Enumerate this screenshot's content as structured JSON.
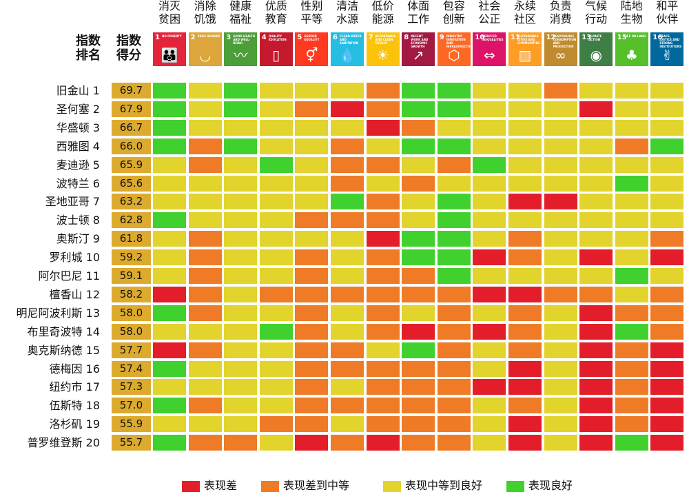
{
  "chart_data": {
    "type": "heatmap",
    "header": {
      "rank_label": "指数\n排名",
      "score_label": "指数\n得分"
    },
    "goals": [
      {
        "num": "1",
        "name": "消灭\n贫困",
        "caption": "NO POVERTY",
        "color": "#e5243b",
        "icon": "people-icon"
      },
      {
        "num": "2",
        "name": "消除\n饥饿",
        "caption": "ZERO HUNGER",
        "color": "#dda63a",
        "icon": "bowl-icon"
      },
      {
        "num": "3",
        "name": "健康\n福祉",
        "caption": "GOOD HEALTH AND WELL-BEING",
        "color": "#4c9f38",
        "icon": "heartbeat-icon"
      },
      {
        "num": "4",
        "name": "优质\n教育",
        "caption": "QUALITY EDUCATION",
        "color": "#c5192d",
        "icon": "book-icon"
      },
      {
        "num": "5",
        "name": "性别\n平等",
        "caption": "GENDER EQUALITY",
        "color": "#ff3a21",
        "icon": "gender-icon"
      },
      {
        "num": "6",
        "name": "清洁\n水源",
        "caption": "CLEAN WATER AND SANITATION",
        "color": "#26bde2",
        "icon": "water-drop-icon"
      },
      {
        "num": "7",
        "name": "低价\n能源",
        "caption": "AFFORDABLE AND CLEAN ENERGY",
        "color": "#fcc30b",
        "icon": "sun-icon"
      },
      {
        "num": "8",
        "name": "体面\n工作",
        "caption": "DECENT WORK AND ECONOMIC GROWTH",
        "color": "#a21942",
        "icon": "growth-chart-icon"
      },
      {
        "num": "9",
        "name": "包容\n创新",
        "caption": "INDUSTRY, INNOVATION AND INFRASTRUCTURE",
        "color": "#fd6925",
        "icon": "cubes-icon"
      },
      {
        "num": "10",
        "name": "社会\n公正",
        "caption": "REDUCED INEQUALITIES",
        "color": "#dd1367",
        "icon": "equality-icon"
      },
      {
        "num": "11",
        "name": "永续\n社区",
        "caption": "SUSTAINABLE CITIES AND COMMUNITIES",
        "color": "#fd9d24",
        "icon": "buildings-icon"
      },
      {
        "num": "12",
        "name": "负责\n消费",
        "caption": "RESPONSIBLE CONSUMPTION AND PRODUCTION",
        "color": "#bf8b2e",
        "icon": "infinity-icon"
      },
      {
        "num": "13",
        "name": "气候\n行动",
        "caption": "CLIMATE ACTION",
        "color": "#3f7e44",
        "icon": "eye-globe-icon"
      },
      {
        "num": "15",
        "name": "陆地\n生物",
        "caption": "LIFE ON LAND",
        "color": "#56c02b",
        "icon": "tree-icon"
      },
      {
        "num": "16",
        "name": "和平\n伙伴",
        "caption": "PEACE, JUSTICE AND STRONG INSTITUTIONS",
        "color": "#00689d",
        "icon": "dove-icon"
      }
    ],
    "rows": [
      {
        "city": "旧金山 1",
        "score": "69.7",
        "levels": [
          "G",
          "Y",
          "G",
          "Y",
          "Y",
          "Y",
          "O",
          "G",
          "G",
          "Y",
          "Y",
          "O",
          "Y",
          "Y",
          "Y"
        ]
      },
      {
        "city": "圣何塞 2",
        "score": "67.9",
        "levels": [
          "G",
          "Y",
          "G",
          "Y",
          "O",
          "R",
          "O",
          "G",
          "G",
          "Y",
          "Y",
          "Y",
          "R",
          "Y",
          "Y"
        ]
      },
      {
        "city": "华盛顿 3",
        "score": "66.7",
        "levels": [
          "G",
          "Y",
          "Y",
          "Y",
          "Y",
          "Y",
          "R",
          "O",
          "Y",
          "Y",
          "Y",
          "Y",
          "Y",
          "Y",
          "Y"
        ]
      },
      {
        "city": "西雅图 4",
        "score": "66.0",
        "levels": [
          "G",
          "O",
          "G",
          "Y",
          "Y",
          "O",
          "Y",
          "G",
          "G",
          "Y",
          "Y",
          "Y",
          "Y",
          "O",
          "G"
        ]
      },
      {
        "city": "麦迪逊 5",
        "score": "65.9",
        "levels": [
          "Y",
          "O",
          "Y",
          "G",
          "Y",
          "O",
          "O",
          "Y",
          "O",
          "G",
          "Y",
          "Y",
          "Y",
          "Y",
          "Y"
        ]
      },
      {
        "city": "波特兰 6",
        "score": "65.6",
        "levels": [
          "Y",
          "Y",
          "Y",
          "Y",
          "Y",
          "O",
          "Y",
          "O",
          "Y",
          "Y",
          "Y",
          "Y",
          "Y",
          "G",
          "Y"
        ]
      },
      {
        "city": "圣地亚哥 7",
        "score": "63.2",
        "levels": [
          "Y",
          "Y",
          "Y",
          "Y",
          "Y",
          "G",
          "O",
          "Y",
          "G",
          "Y",
          "R",
          "R",
          "Y",
          "Y",
          "Y"
        ]
      },
      {
        "city": "波士顿 8",
        "score": "62.8",
        "levels": [
          "G",
          "Y",
          "Y",
          "Y",
          "O",
          "O",
          "O",
          "Y",
          "G",
          "Y",
          "Y",
          "Y",
          "Y",
          "Y",
          "Y"
        ]
      },
      {
        "city": "奥斯汀 9",
        "score": "61.8",
        "levels": [
          "Y",
          "O",
          "Y",
          "Y",
          "Y",
          "Y",
          "R",
          "G",
          "G",
          "Y",
          "O",
          "Y",
          "Y",
          "Y",
          "O"
        ]
      },
      {
        "city": "罗利城 10",
        "score": "59.2",
        "levels": [
          "Y",
          "O",
          "Y",
          "Y",
          "O",
          "Y",
          "O",
          "G",
          "G",
          "R",
          "O",
          "Y",
          "R",
          "Y",
          "R"
        ]
      },
      {
        "city": "阿尔巴尼 11",
        "score": "59.1",
        "levels": [
          "Y",
          "O",
          "Y",
          "Y",
          "O",
          "Y",
          "O",
          "O",
          "G",
          "Y",
          "Y",
          "Y",
          "Y",
          "G",
          "Y"
        ]
      },
      {
        "city": "檀香山 12",
        "score": "58.2",
        "levels": [
          "R",
          "O",
          "Y",
          "O",
          "O",
          "O",
          "O",
          "O",
          "O",
          "R",
          "R",
          "O",
          "O",
          "Y",
          "O"
        ]
      },
      {
        "city": "明尼阿波利斯 13",
        "score": "58.0",
        "levels": [
          "G",
          "O",
          "Y",
          "Y",
          "O",
          "Y",
          "O",
          "Y",
          "O",
          "Y",
          "O",
          "Y",
          "R",
          "O",
          "O"
        ]
      },
      {
        "city": "布里奇波特 14",
        "score": "58.0",
        "levels": [
          "Y",
          "Y",
          "Y",
          "G",
          "O",
          "Y",
          "O",
          "R",
          "O",
          "R",
          "O",
          "Y",
          "R",
          "G",
          "O"
        ]
      },
      {
        "city": "奥克斯纳德 15",
        "score": "57.7",
        "levels": [
          "R",
          "O",
          "Y",
          "Y",
          "O",
          "O",
          "Y",
          "G",
          "O",
          "Y",
          "O",
          "Y",
          "R",
          "O",
          "R"
        ]
      },
      {
        "city": "德梅因 16",
        "score": "57.4",
        "levels": [
          "G",
          "Y",
          "Y",
          "Y",
          "O",
          "O",
          "O",
          "O",
          "O",
          "Y",
          "R",
          "Y",
          "R",
          "O",
          "R"
        ]
      },
      {
        "city": "纽约市 17",
        "score": "57.3",
        "levels": [
          "Y",
          "Y",
          "Y",
          "Y",
          "O",
          "Y",
          "O",
          "O",
          "O",
          "R",
          "R",
          "Y",
          "R",
          "O",
          "R"
        ]
      },
      {
        "city": "伍斯特 18",
        "score": "57.0",
        "levels": [
          "G",
          "O",
          "Y",
          "Y",
          "O",
          "O",
          "O",
          "O",
          "O",
          "Y",
          "O",
          "Y",
          "R",
          "O",
          "R"
        ]
      },
      {
        "city": "洛杉矶 19",
        "score": "55.9",
        "levels": [
          "Y",
          "Y",
          "Y",
          "O",
          "O",
          "Y",
          "O",
          "O",
          "O",
          "Y",
          "R",
          "Y",
          "R",
          "O",
          "R"
        ]
      },
      {
        "city": "普罗维登斯 20",
        "score": "55.7",
        "levels": [
          "G",
          "O",
          "O",
          "Y",
          "R",
          "O",
          "R",
          "O",
          "O",
          "Y",
          "R",
          "Y",
          "R",
          "G",
          "R"
        ]
      }
    ],
    "legend": [
      {
        "key": "R",
        "label": "表现差",
        "color": "#e31e2a"
      },
      {
        "key": "O",
        "label": "表现差到中等",
        "color": "#ef7b27"
      },
      {
        "key": "Y",
        "label": "表现中等到良好",
        "color": "#e2d42c"
      },
      {
        "key": "G",
        "label": "表现良好",
        "color": "#41d12e"
      }
    ],
    "score_color": "#dcaa2d"
  }
}
